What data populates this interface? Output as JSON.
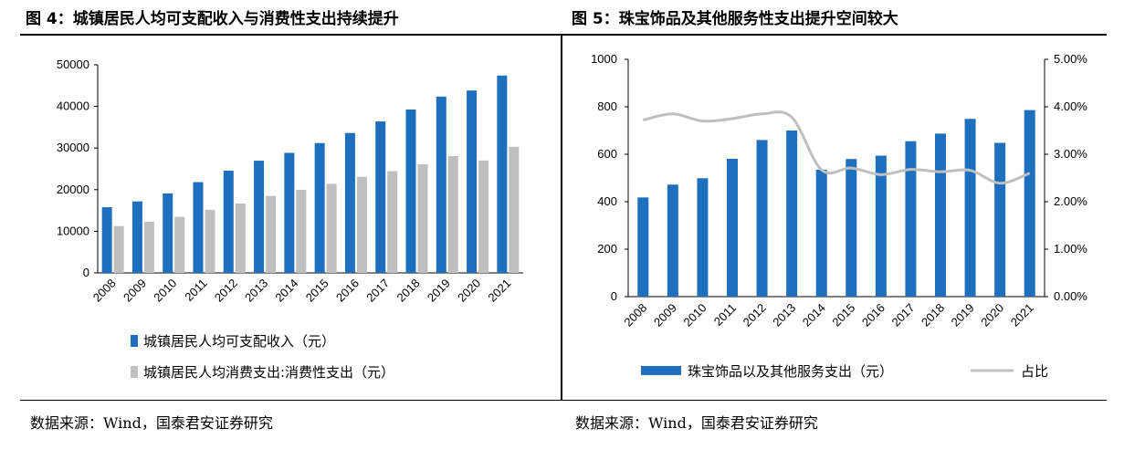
{
  "left": {
    "title": "图 4：城镇居民人均可支配收入与消费性支出持续提升",
    "source": "数据来源：Wind，国泰君安证券研究",
    "chart_data": {
      "type": "bar",
      "categories": [
        "2008",
        "2009",
        "2010",
        "2011",
        "2012",
        "2013",
        "2014",
        "2015",
        "2016",
        "2017",
        "2018",
        "2019",
        "2020",
        "2021"
      ],
      "series": [
        {
          "name": "城镇居民人均可支配收入（元）",
          "color": "#1f6fbf",
          "values": [
            15781,
            17175,
            19109,
            21810,
            24565,
            26955,
            28844,
            31195,
            33616,
            36396,
            39251,
            42359,
            43834,
            47412
          ]
        },
        {
          "name": "城镇居民人均消费支出:消费性支出（元）",
          "color": "#bfbfbf",
          "values": [
            11243,
            12265,
            13471,
            15161,
            16674,
            18488,
            19968,
            21392,
            23079,
            24445,
            26112,
            28063,
            27007,
            30307
          ]
        }
      ],
      "ylim": [
        0,
        50000
      ],
      "yticks": [
        0,
        10000,
        20000,
        30000,
        40000,
        50000
      ],
      "ytick_labels": [
        "0",
        "10000",
        "20000",
        "30000",
        "40000",
        "50000"
      ],
      "grid": false,
      "legend_position": "bottom"
    }
  },
  "right": {
    "title": "图 5：珠宝饰品及其他服务性支出提升空间较大",
    "source": "数据来源：Wind，国泰君安证券研究",
    "chart_data": {
      "type": "bar",
      "categories": [
        "2008",
        "2009",
        "2010",
        "2011",
        "2012",
        "2013",
        "2014",
        "2015",
        "2016",
        "2017",
        "2018",
        "2019",
        "2020",
        "2021"
      ],
      "series": [
        {
          "name": "珠宝饰品以及其他服务支出（元）",
          "type": "bar",
          "axis": "left",
          "color": "#1f6fbf",
          "values": [
            418,
            472,
            499,
            581,
            660,
            700,
            535,
            580,
            594,
            655,
            687,
            749,
            648,
            786
          ]
        },
        {
          "name": "占比",
          "type": "line",
          "axis": "right",
          "color": "#bfbfbf",
          "values": [
            3.72,
            3.85,
            3.7,
            3.75,
            3.85,
            3.78,
            2.67,
            2.71,
            2.57,
            2.68,
            2.63,
            2.66,
            2.39,
            2.6
          ]
        }
      ],
      "ylim_left": [
        0,
        1000
      ],
      "yticks_left": [
        0,
        200,
        400,
        600,
        800,
        1000
      ],
      "ytick_labels_left": [
        "0",
        "200",
        "400",
        "600",
        "800",
        "1000"
      ],
      "ylim_right": [
        0,
        5
      ],
      "yticks_right": [
        0,
        1,
        2,
        3,
        4,
        5
      ],
      "ytick_labels_right": [
        "0.00%",
        "1.00%",
        "2.00%",
        "3.00%",
        "4.00%",
        "5.00%"
      ],
      "grid": false,
      "legend_position": "bottom"
    }
  }
}
